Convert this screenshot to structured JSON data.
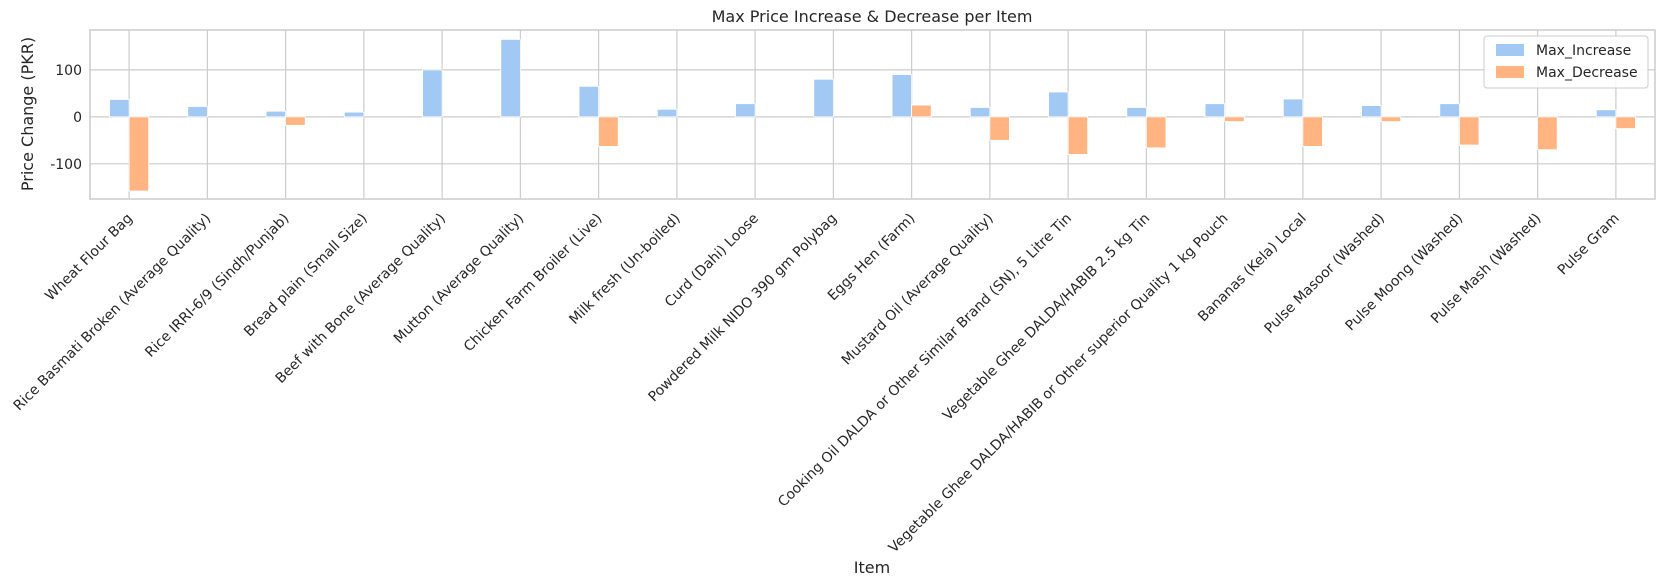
{
  "chart_data": {
    "type": "bar",
    "title": "Max Price Increase & Decrease per Item",
    "xlabel": "Item",
    "ylabel": "Price Change (PKR)",
    "ylim": [
      -175,
      185
    ],
    "yticks": [
      -100,
      0,
      100
    ],
    "grid": true,
    "legend_position": "top-right",
    "categories": [
      "Wheat Flour Bag",
      "Rice Basmati Broken (Average Quality)",
      "Rice IRRI-6/9 (Sindh/Punjab)",
      "Bread plain (Small Size)",
      "Beef with Bone (Average Quality)",
      "Mutton (Average Quality)",
      "Chicken Farm Broiler (Live)",
      "Milk fresh (Un-boiled)",
      "Curd (Dahi) Loose",
      "Powdered Milk NIDO 390 gm Polybag",
      "Eggs Hen (Farm)",
      "Mustard Oil (Average Quality)",
      "Cooking Oil DALDA or Other Similar Brand (SN), 5 Litre Tin",
      "Vegetable Ghee DALDA/HABIB 2.5 kg Tin",
      "Vegetable Ghee DALDA/HABIB or Other superior Quality 1 kg Pouch",
      "Bananas (Kela) Local",
      "Pulse Masoor (Washed)",
      "Pulse Moong (Washed)",
      "Pulse Mash (Washed)",
      "Pulse Gram"
    ],
    "series": [
      {
        "name": "Max_Increase",
        "color": "#a1c9f4",
        "values": [
          37,
          22,
          12,
          10,
          100,
          165,
          65,
          16,
          28,
          80,
          90,
          20,
          53,
          20,
          28,
          38,
          24,
          28,
          0,
          15
        ]
      },
      {
        "name": "Max_Decrease",
        "color": "#ffb482",
        "values": [
          -158,
          0,
          -18,
          0,
          0,
          0,
          -63,
          0,
          0,
          0,
          25,
          -50,
          -80,
          -66,
          -10,
          -63,
          -10,
          -60,
          -70,
          -25
        ]
      }
    ]
  }
}
